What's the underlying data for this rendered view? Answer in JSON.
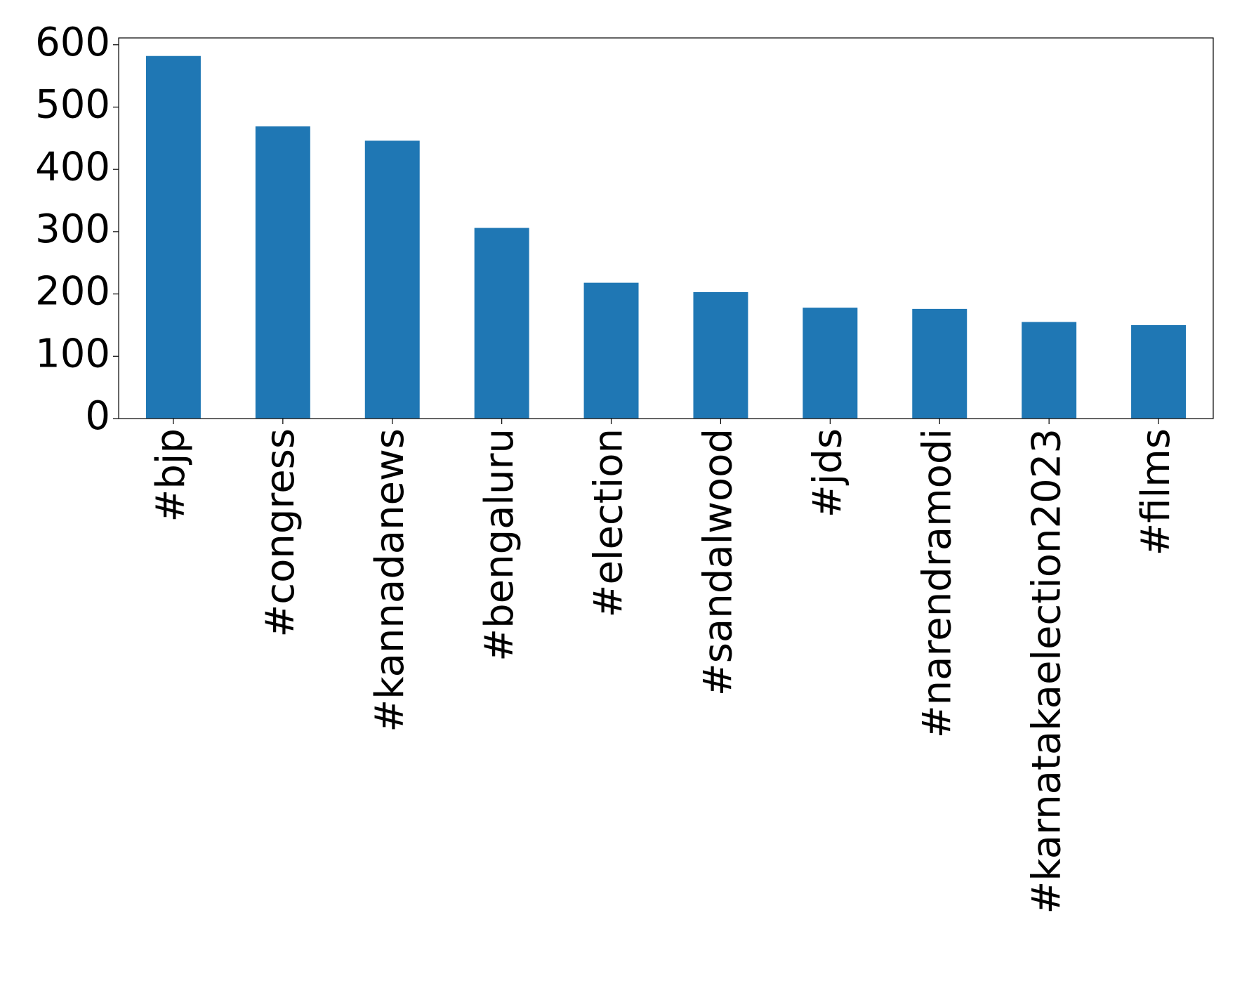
{
  "chart_data": {
    "type": "bar",
    "categories": [
      "#bjp",
      "#congress",
      "#kannadanews",
      "#bengaluru",
      "#election",
      "#sandalwood",
      "#jds",
      "#narendramodi",
      "#karnatakaelection2023",
      "#films"
    ],
    "values": [
      582,
      469,
      446,
      306,
      218,
      203,
      178,
      176,
      155,
      150
    ],
    "color": "#1f77b4",
    "ylim": [
      0,
      611
    ],
    "yticks": [
      0,
      100,
      200,
      300,
      400,
      500,
      600
    ],
    "grid": false
  }
}
